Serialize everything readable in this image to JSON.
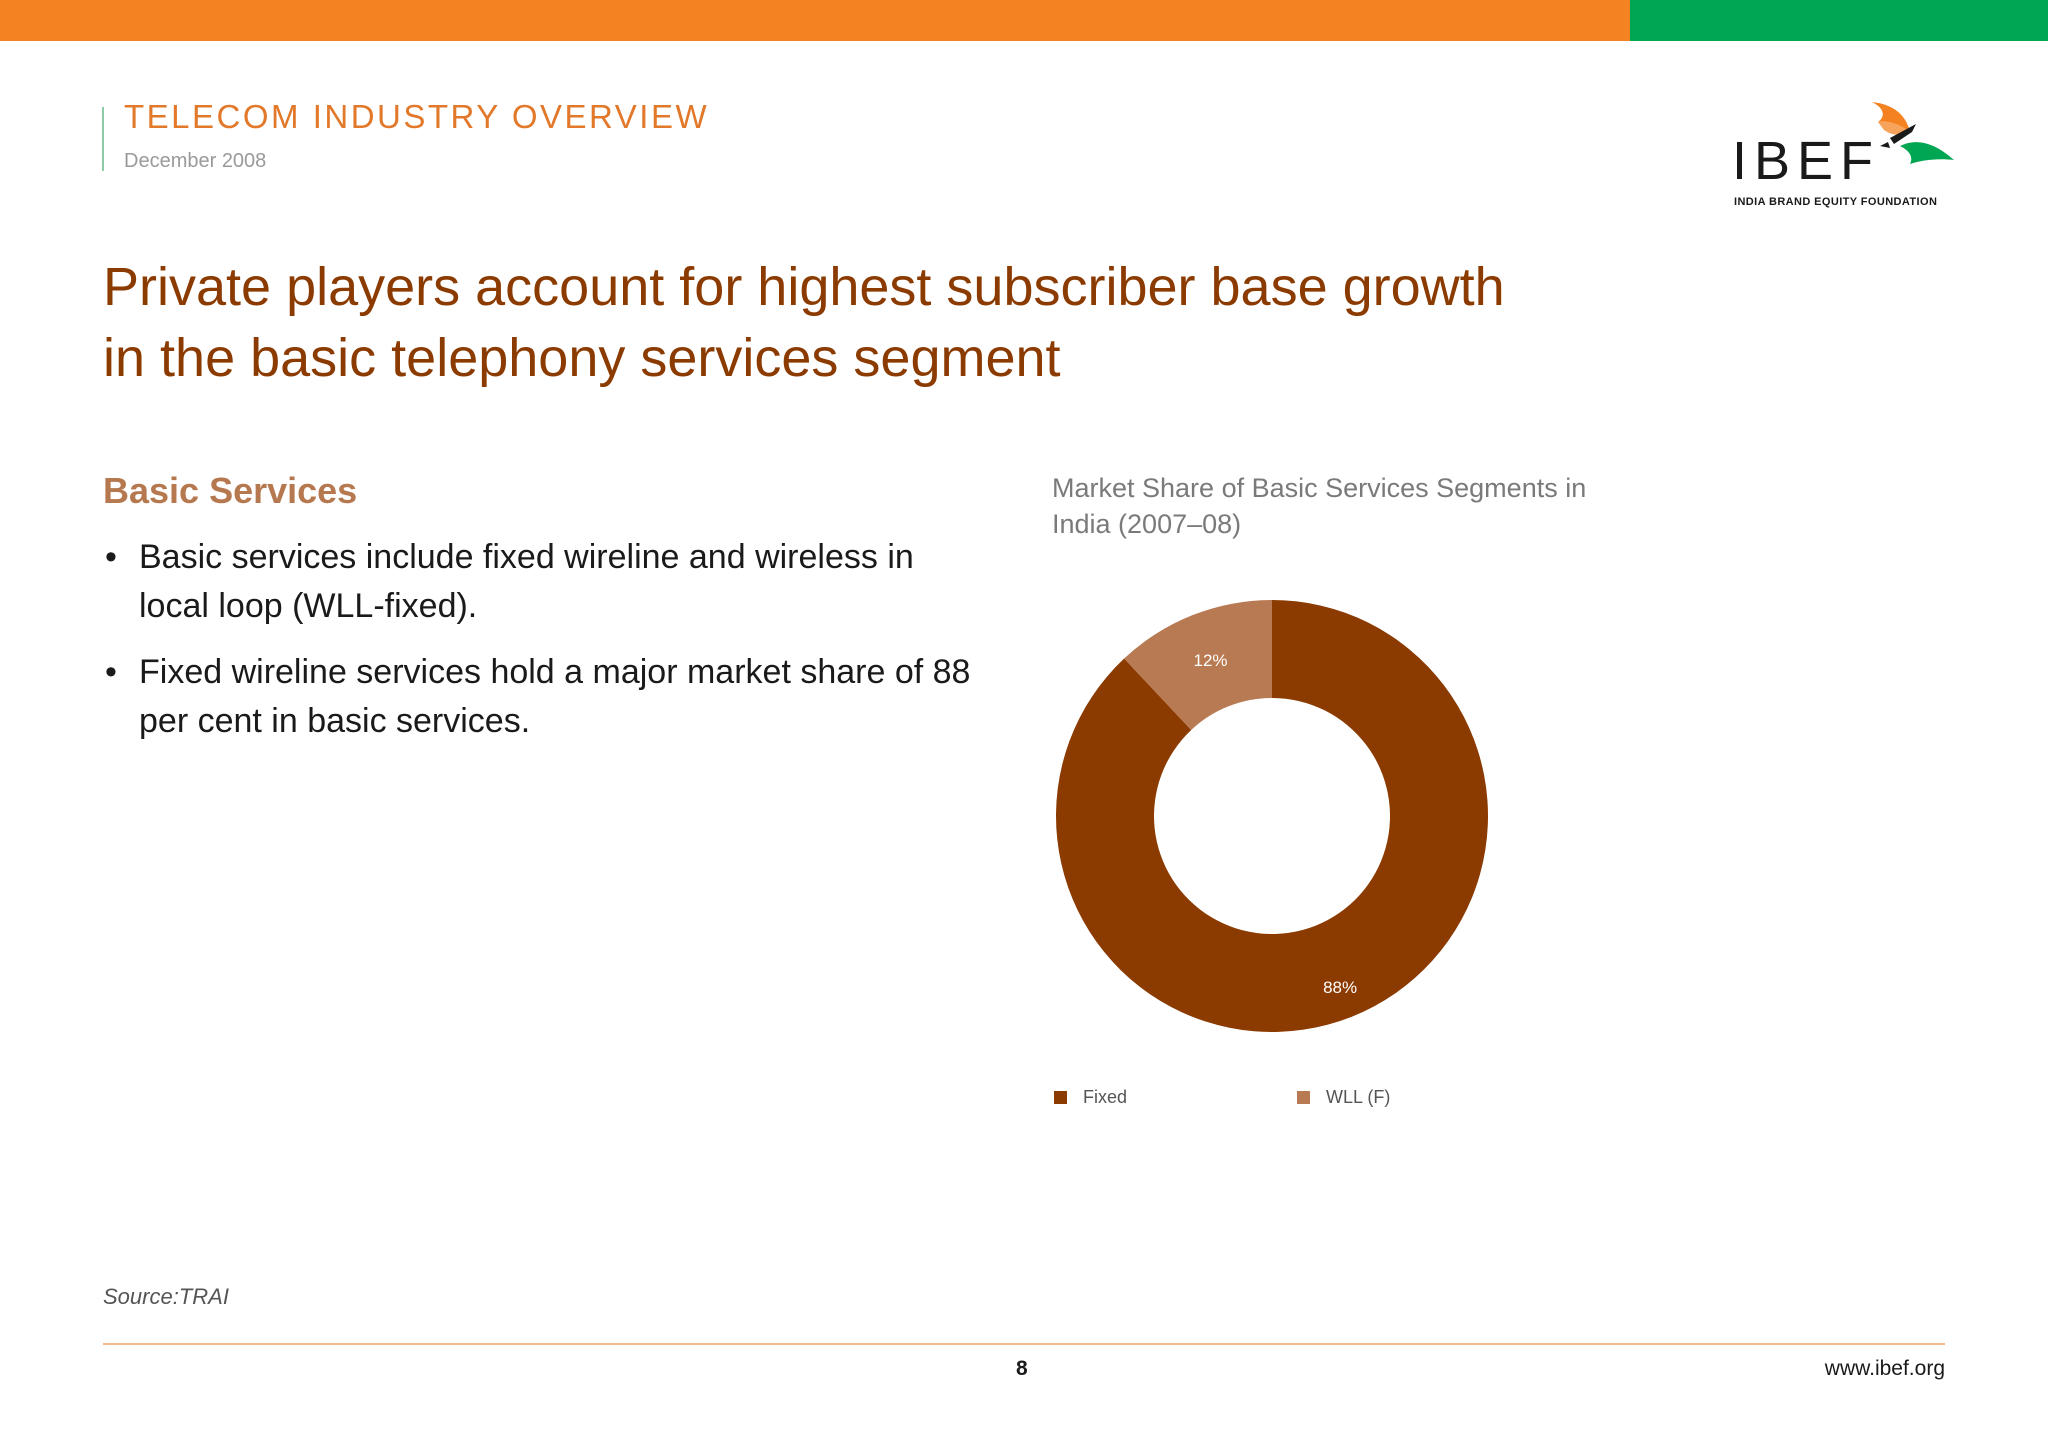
{
  "header": {
    "title": "TELECOM INDUSTRY OVERVIEW",
    "date": "December 2008"
  },
  "logo": {
    "wordmark": "IBEF",
    "tagline": "INDIA BRAND EQUITY FOUNDATION"
  },
  "headline": {
    "line1": "Private players account for highest subscriber base growth",
    "line2": "in the basic telephony services segment"
  },
  "section": {
    "heading": "Basic Services",
    "bullets": [
      "Basic services include fixed wireline and wireless in local loop (WLL-fixed).",
      "Fixed wireline services hold a major market share of 88 per cent in basic services."
    ],
    "bullet_marker": "•"
  },
  "chart_data": {
    "type": "pie",
    "title": "Market Share of Basic Services Segments in India (2007–08)",
    "categories": [
      "Fixed",
      "WLL (F)"
    ],
    "values": [
      88,
      12
    ],
    "value_labels": [
      "88%",
      "12%"
    ],
    "colors": [
      "#8b3a00",
      "#b87a52"
    ],
    "donut": true,
    "legend_position": "bottom"
  },
  "footer": {
    "source": "Source:TRAI",
    "page_number": "8",
    "url": "www.ibef.org"
  },
  "colors": {
    "top_bar_orange": "#f58220",
    "top_bar_green": "#00a651",
    "headline": "#8b3a00",
    "section_heading": "#b5784f"
  }
}
